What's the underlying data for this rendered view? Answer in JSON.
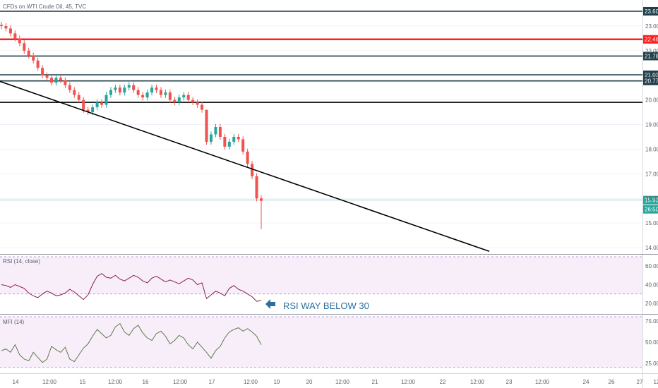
{
  "chart_data": [
    {
      "type": "candlestick",
      "title": "CFDs on WTI Crude Oil, 45, TVC",
      "ylim": [
        13.8,
        24.0
      ],
      "y_ticks": [
        "23.00",
        "22.00",
        "21.00",
        "20.00",
        "19.00",
        "18.00",
        "17.00",
        "16.00",
        "15.00",
        "14.00"
      ],
      "x_ticks": [
        "14",
        "12:00",
        "15",
        "12:00",
        "16",
        "12:00",
        "17",
        "12:00",
        "19",
        "20",
        "12:00",
        "21",
        "12:00",
        "22",
        "12:00",
        "23",
        "12:00",
        "24",
        "26",
        "27",
        "12"
      ],
      "horizontal_levels": [
        {
          "value": 23.6,
          "label": "23.60",
          "color": "#1f3f4a"
        },
        {
          "value": 22.46,
          "label": "22.46",
          "color": "#ff1f1f"
        },
        {
          "value": 21.78,
          "label": "21.78",
          "color": "#1f3f4a"
        },
        {
          "value": 21.02,
          "label": "21.02",
          "color": "#1f3f4a"
        },
        {
          "value": 20.77,
          "label": "20.77",
          "color": "#1f3f4a"
        },
        {
          "value": 19.9,
          "label": "",
          "color": "#000000"
        }
      ],
      "trendline": {
        "from": {
          "x": "14",
          "y": 20.75
        },
        "to": {
          "x": "23",
          "y": 13.85
        },
        "color": "#000000"
      },
      "last_price": {
        "value": 15.93,
        "label": "15.93",
        "color": "#26a69a"
      },
      "countdown": {
        "label": "26:50"
      },
      "series": [
        {
          "name": "close",
          "values": [
            23.0,
            22.9,
            22.7,
            22.5,
            22.3,
            22.0,
            21.8,
            21.6,
            21.3,
            21.0,
            20.9,
            20.7,
            20.9,
            20.8,
            20.6,
            20.4,
            20.2,
            20.0,
            19.6,
            19.5,
            19.7,
            19.9,
            19.8,
            20.2,
            20.4,
            20.5,
            20.3,
            20.5,
            20.6,
            20.4,
            20.2,
            20.1,
            20.3,
            20.5,
            20.4,
            20.2,
            20.3,
            20.0,
            19.9,
            20.1,
            20.2,
            20.0,
            19.9,
            19.8,
            19.6,
            18.3,
            18.6,
            18.9,
            18.5,
            18.1,
            18.3,
            18.5,
            18.4,
            17.9,
            17.4,
            16.9,
            16.0,
            15.9
          ]
        },
        {
          "name": "color",
          "values": [
            "#ef5350",
            "#26a69a",
            "#ef5350",
            "#ef5350"
          ]
        }
      ]
    },
    {
      "type": "line",
      "title": "RSI (14, close)",
      "ylim": [
        10,
        70
      ],
      "y_ticks": [
        "60.00",
        "40.00",
        "20.00"
      ],
      "band": [
        30,
        70
      ],
      "series": [
        {
          "name": "",
          "color": "#8e1e4a",
          "values": [
            40,
            39,
            37,
            40,
            38,
            36,
            31,
            28,
            26,
            30,
            33,
            31,
            28,
            29,
            31,
            35,
            32,
            28,
            24,
            29,
            40,
            49,
            52,
            48,
            47,
            50,
            46,
            44,
            47,
            50,
            48,
            44,
            42,
            47,
            49,
            46,
            43,
            45,
            43,
            41,
            44,
            47,
            45,
            40,
            42,
            25,
            29,
            33,
            31,
            28,
            36,
            39,
            35,
            33,
            30,
            27,
            22,
            23
          ]
        }
      ],
      "annotation": {
        "text": "RSI WAY BELOW 30",
        "color": "#2a6f9e"
      }
    },
    {
      "type": "line",
      "title": "MFI (14)",
      "ylim": [
        15,
        80
      ],
      "y_ticks": [
        "75.00",
        "50.00",
        "25.00"
      ],
      "band": [
        20,
        80
      ],
      "series": [
        {
          "name": "",
          "color": "#5d7a4a",
          "values": [
            40,
            42,
            38,
            47,
            35,
            30,
            28,
            38,
            32,
            26,
            30,
            45,
            41,
            38,
            44,
            30,
            27,
            35,
            43,
            48,
            57,
            65,
            60,
            55,
            58,
            68,
            72,
            62,
            58,
            66,
            70,
            61,
            55,
            52,
            60,
            63,
            57,
            48,
            52,
            58,
            55,
            47,
            42,
            50,
            44,
            38,
            31,
            40,
            45,
            55,
            62,
            65,
            67,
            63,
            66,
            62,
            57,
            47
          ]
        }
      ]
    }
  ]
}
